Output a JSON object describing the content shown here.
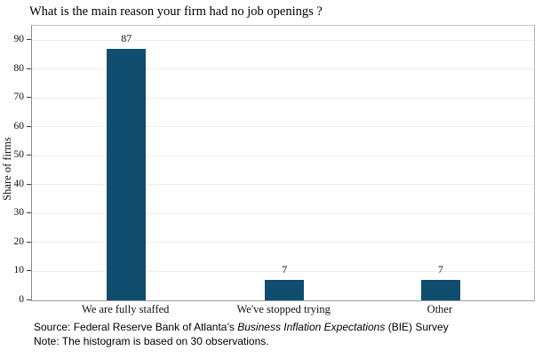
{
  "title": "What is the main reason your firm had no job openings ?",
  "chart_data": {
    "type": "bar",
    "title": "What is the main reason your firm had no job openings ?",
    "categories": [
      "We are fully staffed",
      "We've stopped trying",
      "Other"
    ],
    "values": [
      87,
      7,
      7
    ],
    "xlabel": "",
    "ylabel": "Share of firms",
    "ylim": [
      0,
      95
    ],
    "yticks": [
      0,
      10,
      20,
      30,
      40,
      50,
      60,
      70,
      80,
      90
    ],
    "grid": true,
    "legend": "none",
    "bar_color": "#114d6e",
    "value_labels": [
      87,
      7,
      7
    ]
  },
  "notes": {
    "source_prefix": "Source: Federal Reserve Bank of Atlanta’s ",
    "source_italic": "Business Inflation Expectations",
    "source_suffix": " (BIE) Survey",
    "note_line": "Note: The histogram is based on 30 observations."
  }
}
